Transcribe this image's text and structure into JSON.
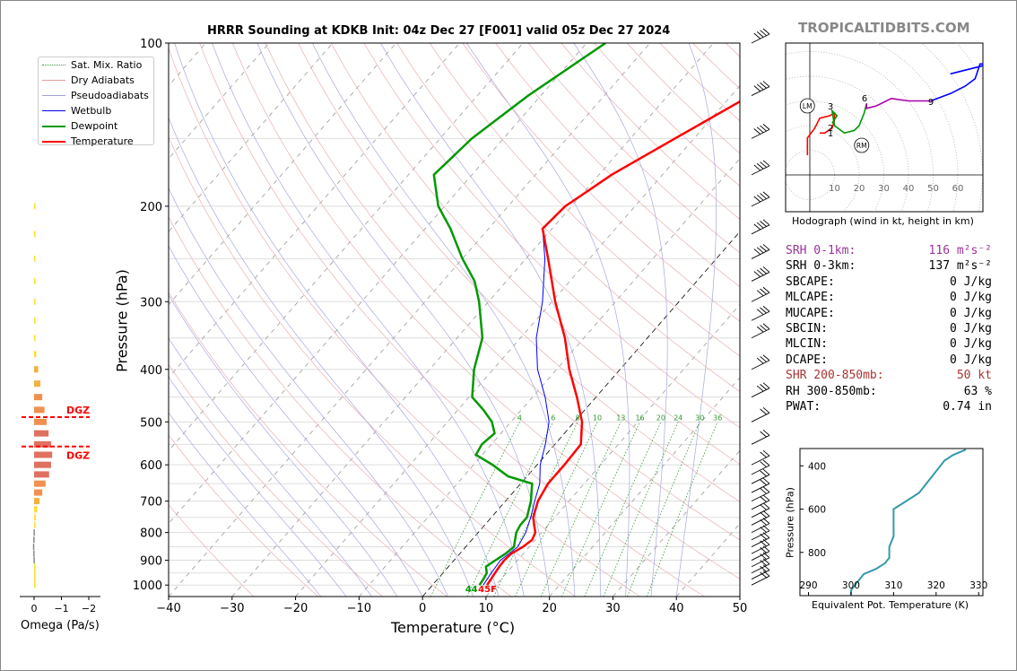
{
  "title": "HRRR Sounding at KDKB Init: 04z Dec 27 [F001] valid 05z Dec 27 2024",
  "watermark": "TROPICALTIDBITS.COM",
  "colors": {
    "temperature": "#ff0000",
    "dewpoint": "#009900",
    "wetbulb": "#0000ff",
    "theta_e": "#3399aa",
    "dgz": "#ff0000"
  },
  "chart_data": [
    {
      "type": "line",
      "name": "skew-t",
      "xlabel": "Temperature (°C)",
      "ylabel": "Pressure (hPa)",
      "xlim": [
        -40,
        50
      ],
      "ylim": [
        1050,
        100
      ],
      "y_scale": "log",
      "x_ticks": [
        -40,
        -30,
        -20,
        -10,
        0,
        10,
        20,
        30,
        40,
        50
      ],
      "x_tick_labels": [
        "−40",
        "−30",
        "−20",
        "−10",
        "0",
        "10",
        "20",
        "30",
        "40",
        "50"
      ],
      "y_ticks": [
        100,
        200,
        300,
        400,
        500,
        600,
        700,
        800,
        900,
        1000
      ],
      "legend": [
        "Sat. Mix. Ratio",
        "Dry Adiabats",
        "Pseudoadiabats",
        "Wetbulb",
        "Dewpoint",
        "Temperature"
      ],
      "legend_position": "top-left",
      "mixing_ratio_labels": [
        "4",
        "6",
        "8",
        "10",
        "13",
        "16",
        "20",
        "24",
        "30",
        "36"
      ],
      "surface_labels": {
        "dewpoint": "44",
        "temperature": "45F"
      },
      "temperature": [
        [
          1000,
          8.6
        ],
        [
          975,
          8.4
        ],
        [
          950,
          8.2
        ],
        [
          925,
          8.0
        ],
        [
          900,
          7.9
        ],
        [
          875,
          8.1
        ],
        [
          850,
          9.0
        ],
        [
          825,
          9.5
        ],
        [
          800,
          9.0
        ],
        [
          775,
          7.8
        ],
        [
          750,
          6.6
        ],
        [
          700,
          5.1
        ],
        [
          650,
          4.3
        ],
        [
          600,
          4.3
        ],
        [
          550,
          4.1
        ],
        [
          500,
          1.2
        ],
        [
          450,
          -3.0
        ],
        [
          400,
          -8.0
        ],
        [
          350,
          -13.0
        ],
        [
          300,
          -19.5
        ],
        [
          250,
          -26.5
        ],
        [
          220,
          -31.5
        ],
        [
          200,
          -31.0
        ],
        [
          175,
          -28.0
        ],
        [
          150,
          -23.0
        ],
        [
          125,
          -17.0
        ],
        [
          100,
          -8.0
        ]
      ],
      "dewpoint": [
        [
          1000,
          7.4
        ],
        [
          975,
          7.2
        ],
        [
          950,
          6.9
        ],
        [
          925,
          5.9
        ],
        [
          900,
          6.5
        ],
        [
          875,
          7.2
        ],
        [
          850,
          7.6
        ],
        [
          825,
          6.8
        ],
        [
          800,
          6.0
        ],
        [
          775,
          5.6
        ],
        [
          750,
          5.6
        ],
        [
          700,
          4.0
        ],
        [
          650,
          1.8
        ],
        [
          630,
          -3.0
        ],
        [
          600,
          -7.0
        ],
        [
          575,
          -11.0
        ],
        [
          550,
          -11.5
        ],
        [
          525,
          -11.0
        ],
        [
          500,
          -13.0
        ],
        [
          475,
          -16.0
        ],
        [
          450,
          -19.5
        ],
        [
          400,
          -23.0
        ],
        [
          350,
          -26.0
        ],
        [
          300,
          -31.5
        ],
        [
          275,
          -35.0
        ],
        [
          250,
          -40.0
        ],
        [
          220,
          -46.0
        ],
        [
          200,
          -51.0
        ],
        [
          175,
          -56.0
        ],
        [
          150,
          -55.0
        ],
        [
          125,
          -52.0
        ],
        [
          100,
          -47.0
        ]
      ],
      "wetbulb": [
        [
          1000,
          8.0
        ],
        [
          950,
          7.6
        ],
        [
          900,
          7.3
        ],
        [
          850,
          8.2
        ],
        [
          800,
          7.5
        ],
        [
          750,
          6.2
        ],
        [
          700,
          4.6
        ],
        [
          650,
          3.0
        ],
        [
          600,
          0.5
        ],
        [
          550,
          -1.5
        ],
        [
          500,
          -4.0
        ],
        [
          450,
          -8.0
        ],
        [
          400,
          -13.0
        ],
        [
          350,
          -17.5
        ],
        [
          300,
          -21.5
        ],
        [
          250,
          -27.0
        ],
        [
          220,
          -31.5
        ],
        [
          200,
          -31.0
        ],
        [
          175,
          -28.0
        ],
        [
          150,
          -23.0
        ],
        [
          125,
          -17.0
        ],
        [
          100,
          -8.0
        ]
      ],
      "wind_barb_pressures": [
        1000,
        975,
        950,
        925,
        900,
        875,
        850,
        825,
        800,
        775,
        750,
        725,
        700,
        675,
        650,
        625,
        600,
        550,
        500,
        450,
        400,
        350,
        325,
        300,
        275,
        250,
        225,
        200,
        175,
        150,
        125,
        100
      ]
    },
    {
      "type": "bar",
      "name": "omega",
      "xlabel": "Omega (Pa/s)",
      "x_ticks": [
        "0",
        "−1",
        "−2"
      ],
      "xlim": [
        0.1,
        -2
      ],
      "dgz_label": "DGZ",
      "dgz_pressures": [
        490,
        555
      ],
      "pressures": [
        1000,
        975,
        950,
        925,
        900,
        875,
        850,
        825,
        800,
        775,
        750,
        725,
        700,
        675,
        650,
        625,
        600,
        575,
        550,
        525,
        500,
        475,
        450,
        425,
        400,
        375,
        350,
        325,
        300,
        275,
        250,
        225,
        200
      ],
      "values": [
        -0.03,
        -0.02,
        -0.01,
        0.0,
        0.02,
        0.03,
        0.04,
        0.03,
        0.02,
        0.0,
        -0.06,
        -0.12,
        -0.2,
        -0.3,
        -0.42,
        -0.55,
        -0.62,
        -0.66,
        -0.62,
        -0.53,
        -0.46,
        -0.38,
        -0.3,
        -0.23,
        -0.15,
        -0.08,
        -0.05,
        -0.04,
        -0.03,
        -0.03,
        -0.03,
        -0.03,
        -0.02
      ]
    },
    {
      "type": "line",
      "name": "hodograph",
      "caption": "Hodograph (wind in kt, height in km)",
      "ring_labels": [
        "10",
        "20",
        "30",
        "40",
        "50",
        "60"
      ],
      "height_labels": [
        "1",
        "2",
        "3",
        "6",
        "9"
      ],
      "storm_motion_labels": {
        "left": "LM",
        "right": "RM"
      },
      "storm_motion": {
        "LM": [
          -1,
          28
        ],
        "RM": [
          21,
          12
        ]
      },
      "segments": [
        {
          "color": "#ff0000",
          "points": [
            [
              -1,
              8
            ],
            [
              -1,
              15
            ],
            [
              2,
              19
            ],
            [
              4,
              23
            ],
            [
              8,
              24
            ],
            [
              10,
              25
            ],
            [
              10,
              22
            ],
            [
              9,
              19
            ],
            [
              6,
              17
            ],
            [
              4,
              17
            ]
          ]
        },
        {
          "color": "#009900",
          "points": [
            [
              9,
              21
            ],
            [
              11,
              24
            ],
            [
              9,
              26
            ],
            [
              10,
              20
            ],
            [
              14,
              17
            ],
            [
              18,
              18
            ],
            [
              20,
              20
            ],
            [
              22,
              25
            ],
            [
              23,
              29
            ]
          ]
        },
        {
          "color": "#aa00aa",
          "points": [
            [
              23,
              29
            ],
            [
              23,
              27
            ],
            [
              27,
              28
            ],
            [
              33,
              31
            ],
            [
              40,
              30
            ],
            [
              49,
              30
            ]
          ]
        },
        {
          "color": "#0000ff",
          "points": [
            [
              49,
              30
            ],
            [
              57,
              33
            ],
            [
              63,
              36
            ],
            [
              67,
              39
            ],
            [
              69,
              45
            ],
            [
              73,
              45
            ],
            [
              57,
              41
            ]
          ]
        }
      ]
    },
    {
      "type": "line",
      "name": "theta-e",
      "xlabel": "Equivalent Pot. Temperature (K)",
      "ylabel": "Pressure (hPa)",
      "xlim": [
        288,
        331
      ],
      "ylim": [
        1000,
        320
      ],
      "x_ticks": [
        290,
        300,
        310,
        320,
        330
      ],
      "y_ticks": [
        400,
        600,
        800
      ],
      "values": [
        [
          1000,
          300
        ],
        [
          975,
          300
        ],
        [
          950,
          301
        ],
        [
          925,
          302
        ],
        [
          900,
          303
        ],
        [
          875,
          306
        ],
        [
          850,
          308
        ],
        [
          825,
          309
        ],
        [
          800,
          309
        ],
        [
          775,
          309
        ],
        [
          750,
          309.5
        ],
        [
          725,
          310
        ],
        [
          700,
          310
        ],
        [
          675,
          310
        ],
        [
          650,
          310
        ],
        [
          625,
          310
        ],
        [
          600,
          310
        ],
        [
          575,
          312
        ],
        [
          550,
          314
        ],
        [
          525,
          316
        ],
        [
          500,
          317
        ],
        [
          475,
          318
        ],
        [
          450,
          319
        ],
        [
          425,
          320
        ],
        [
          400,
          321
        ],
        [
          375,
          322
        ],
        [
          350,
          324
        ],
        [
          325,
          327
        ]
      ]
    }
  ],
  "params": [
    {
      "label": "SRH 0-1km:",
      "value": "116 m²s⁻²",
      "color": "#993399"
    },
    {
      "label": "SRH 0-3km:",
      "value": "137 m²s⁻²",
      "color": "#000000"
    },
    {
      "label": "SBCAPE:",
      "value": "0 J/kg",
      "color": "#000000"
    },
    {
      "label": "MLCAPE:",
      "value": "0 J/kg",
      "color": "#000000"
    },
    {
      "label": "MUCAPE:",
      "value": "0 J/kg",
      "color": "#000000"
    },
    {
      "label": "SBCIN:",
      "value": "0 J/kg",
      "color": "#000000"
    },
    {
      "label": "MLCIN:",
      "value": "0 J/kg",
      "color": "#000000"
    },
    {
      "label": "DCAPE:",
      "value": "0 J/kg",
      "color": "#000000"
    },
    {
      "label": "SHR 200-850mb:",
      "value": "50 kt",
      "color": "#aa3333"
    },
    {
      "label": "RH 300-850mb:",
      "value": "63 %",
      "color": "#000000"
    },
    {
      "label": "PWAT:",
      "value": "0.74 in",
      "color": "#000000"
    }
  ]
}
